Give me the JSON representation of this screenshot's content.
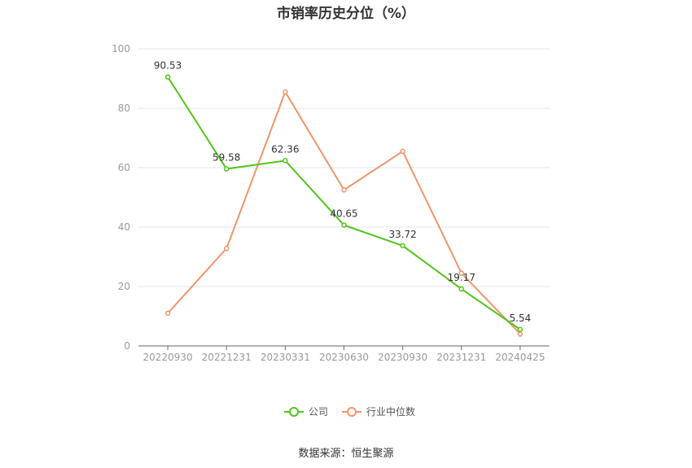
{
  "chart_data": {
    "type": "line",
    "title": "市销率历史分位（%）",
    "categories": [
      "20220930",
      "20221231",
      "20230331",
      "20230630",
      "20230930",
      "20231231",
      "20240425"
    ],
    "ylim": [
      0,
      100
    ],
    "yticks": [
      0,
      20,
      40,
      60,
      80,
      100
    ],
    "grid": true,
    "legend_position": "bottom",
    "series": [
      {
        "name": "公司",
        "color": "#52c41a",
        "values": [
          90.53,
          59.58,
          62.36,
          40.65,
          33.72,
          19.17,
          5.54
        ],
        "labels": [
          "90.53",
          "59.58",
          "62.36",
          "40.65",
          "33.72",
          "19.17",
          "5.54"
        ]
      },
      {
        "name": "行业中位数",
        "color": "#f0956a",
        "values": [
          11.0,
          32.8,
          85.5,
          52.5,
          65.5,
          24.5,
          4.0
        ]
      }
    ],
    "source": "数据来源：恒生聚源"
  }
}
